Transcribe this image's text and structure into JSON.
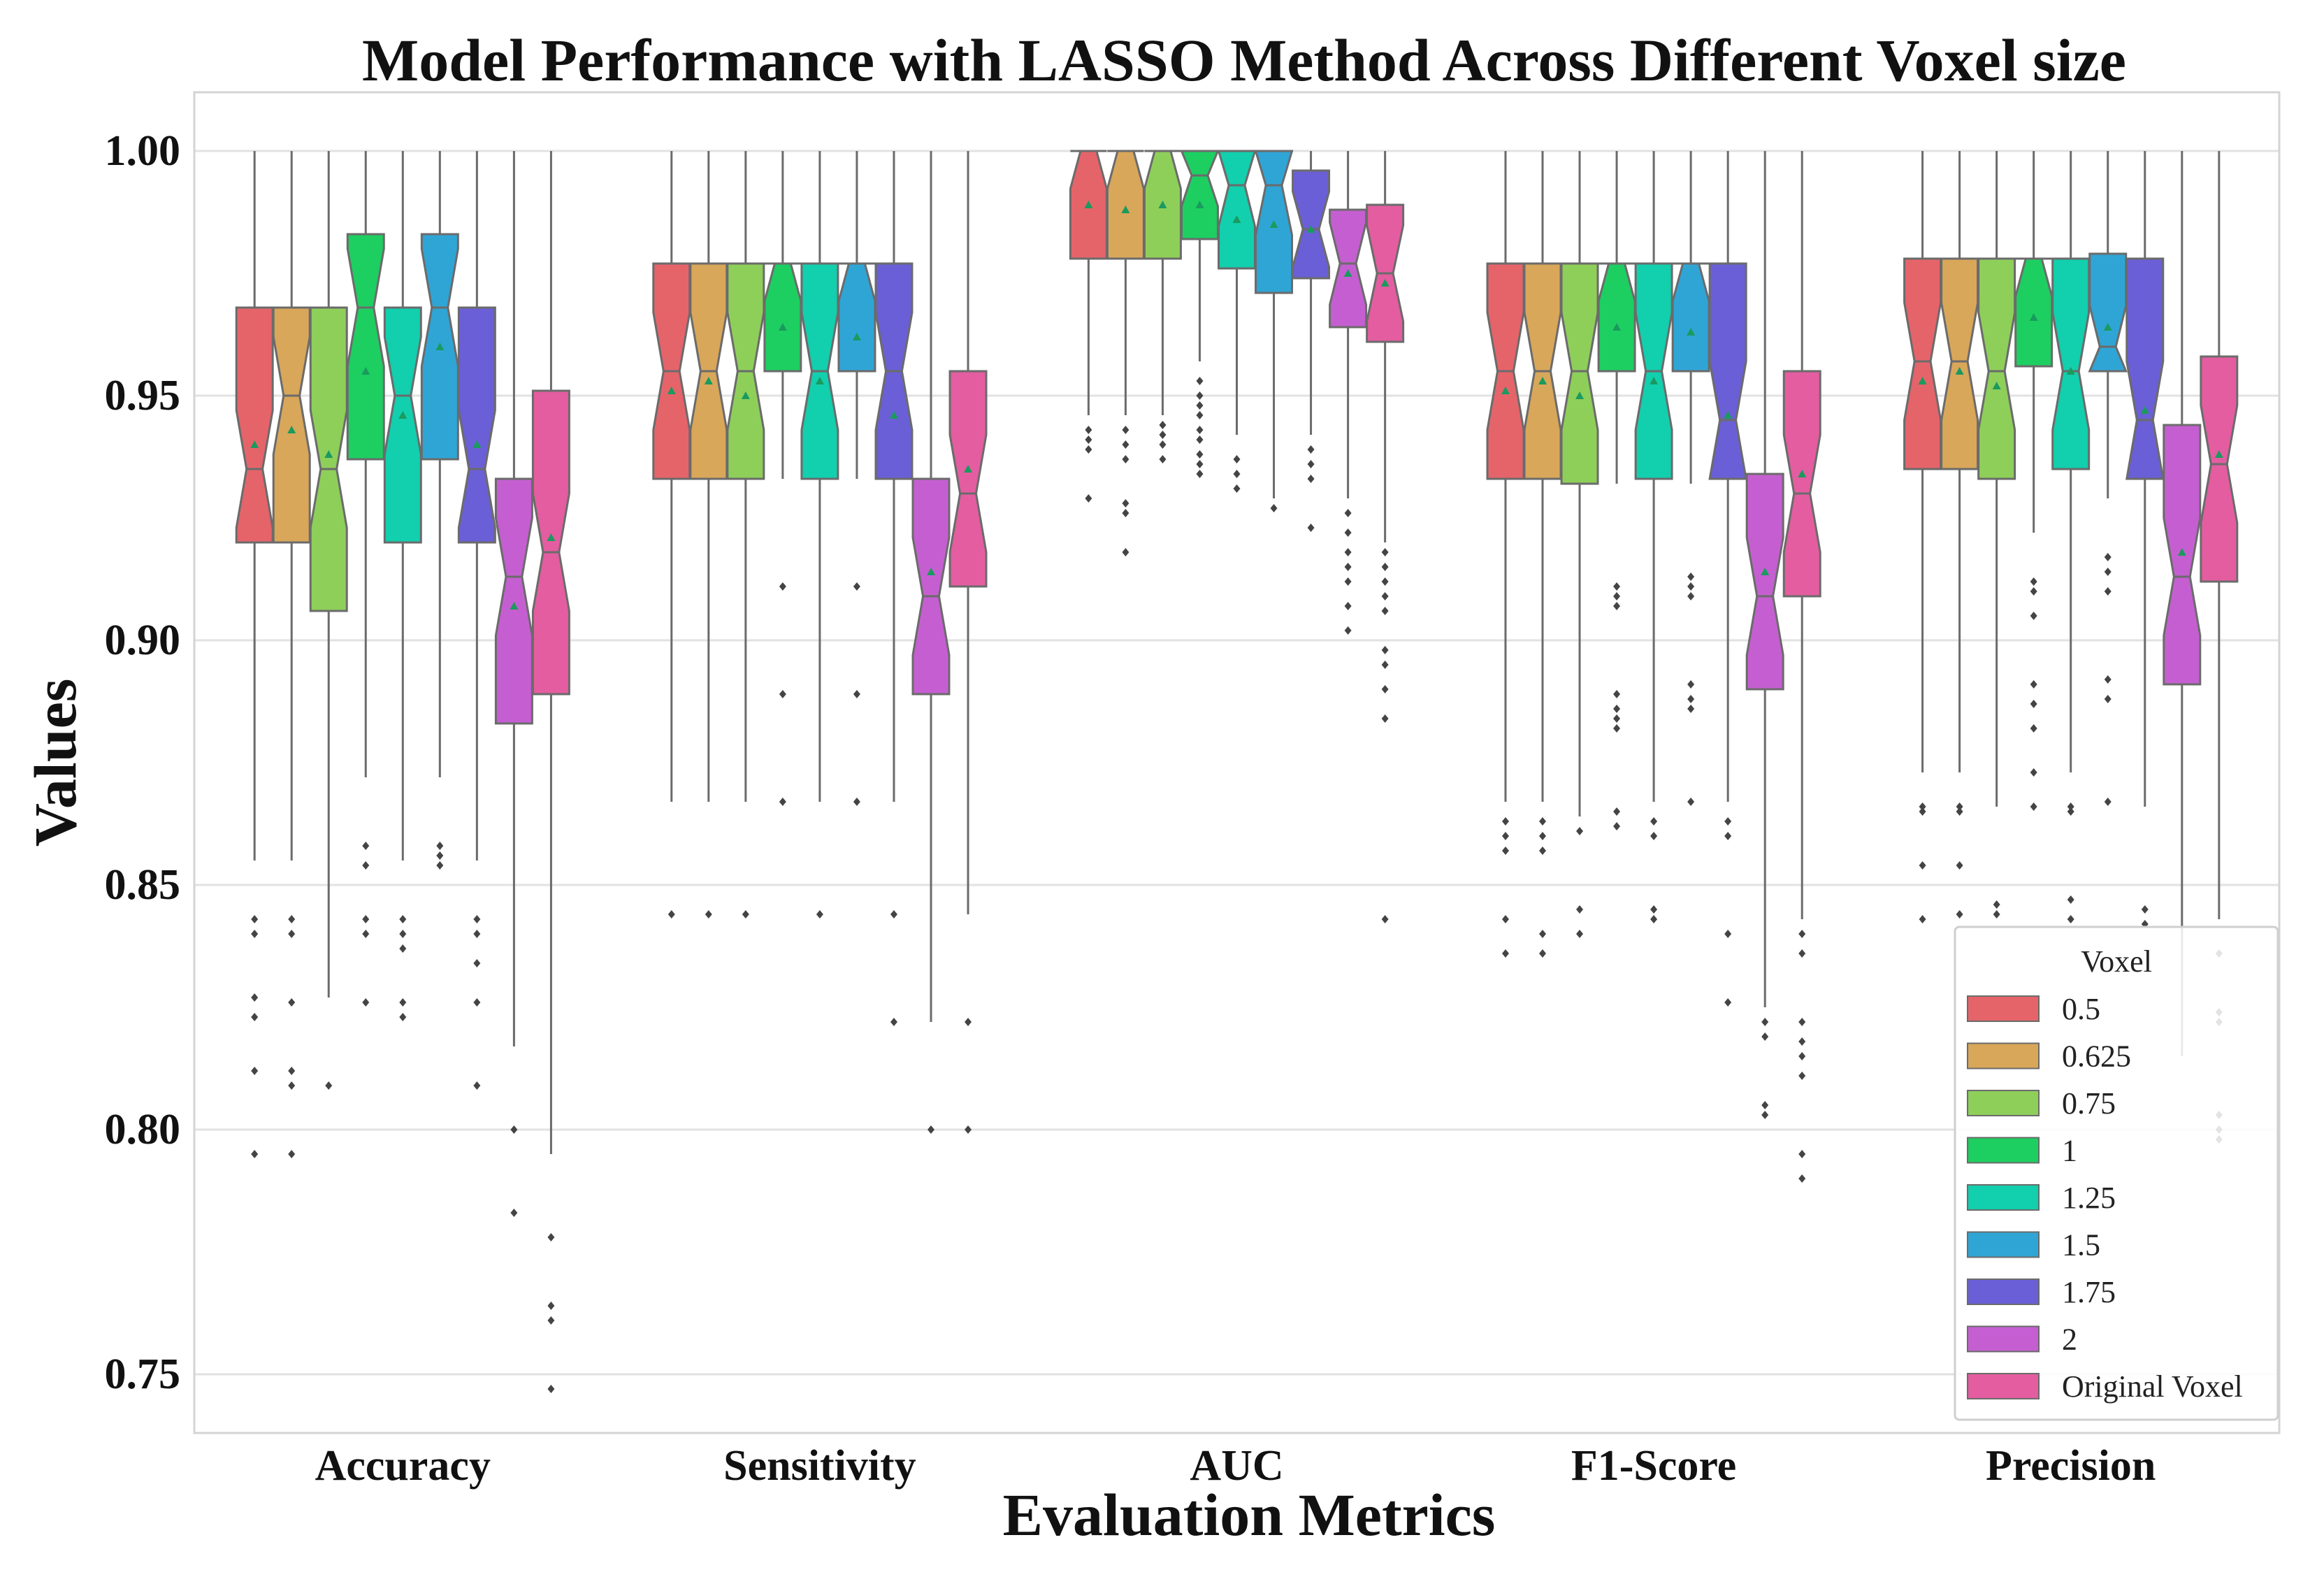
{
  "chart_data": {
    "type": "box",
    "title": "Model Performance with LASSO Method Across Different Voxel size",
    "xlabel": "Evaluation Metrics",
    "ylabel": "Values",
    "ylim": [
      0.738,
      1.012
    ],
    "yticks": [
      0.75,
      0.8,
      0.85,
      0.9,
      0.95,
      1.0
    ],
    "ytick_labels": [
      "0.75",
      "0.80",
      "0.85",
      "0.90",
      "0.95",
      "1.00"
    ],
    "grid": true,
    "notched": true,
    "show_means": true,
    "mean_marker_color": "#1a9a5e",
    "categories": [
      "Accuracy",
      "Sensitivity",
      "AUC",
      "F1-Score",
      "Precision"
    ],
    "legend": {
      "title": "Voxel",
      "position": "lower-right",
      "entries": [
        "0.5",
        "0.625",
        "0.75",
        "1",
        "1.25",
        "1.5",
        "1.75",
        "2",
        "Original Voxel"
      ]
    },
    "series": [
      {
        "name": "0.5",
        "color": "#e5646a",
        "values": [
          {
            "whislo": 0.855,
            "q1": 0.92,
            "med": 0.935,
            "q3": 0.968,
            "whishi": 1.0,
            "mean": 0.94,
            "fliers": [
              0.843,
              0.84,
              0.827,
              0.823,
              0.812,
              0.795
            ]
          },
          {
            "whislo": 0.867,
            "q1": 0.933,
            "med": 0.955,
            "q3": 0.977,
            "whishi": 1.0,
            "mean": 0.951,
            "fliers": [
              0.844
            ]
          },
          {
            "whislo": 0.946,
            "q1": 0.978,
            "med": 1.0,
            "q3": 1.0,
            "whishi": 1.0,
            "mean": 0.989,
            "fliers": [
              0.943,
              0.941,
              0.939,
              0.929
            ]
          },
          {
            "whislo": 0.867,
            "q1": 0.933,
            "med": 0.955,
            "q3": 0.977,
            "whishi": 1.0,
            "mean": 0.951,
            "fliers": [
              0.863,
              0.86,
              0.857,
              0.843,
              0.836
            ]
          },
          {
            "whislo": 0.873,
            "q1": 0.935,
            "med": 0.957,
            "q3": 0.978,
            "whishi": 1.0,
            "mean": 0.953,
            "fliers": [
              0.866,
              0.865,
              0.854,
              0.843
            ]
          }
        ]
      },
      {
        "name": "0.625",
        "color": "#d9a75a",
        "values": [
          {
            "whislo": 0.855,
            "q1": 0.92,
            "med": 0.95,
            "q3": 0.968,
            "whishi": 1.0,
            "mean": 0.943,
            "fliers": [
              0.843,
              0.84,
              0.826,
              0.812,
              0.809,
              0.795
            ]
          },
          {
            "whislo": 0.867,
            "q1": 0.933,
            "med": 0.955,
            "q3": 0.977,
            "whishi": 1.0,
            "mean": 0.953,
            "fliers": [
              0.844
            ]
          },
          {
            "whislo": 0.946,
            "q1": 0.978,
            "med": 1.0,
            "q3": 1.0,
            "whishi": 1.0,
            "mean": 0.988,
            "fliers": [
              0.943,
              0.94,
              0.937,
              0.928,
              0.926,
              0.918
            ]
          },
          {
            "whislo": 0.867,
            "q1": 0.933,
            "med": 0.955,
            "q3": 0.977,
            "whishi": 1.0,
            "mean": 0.953,
            "fliers": [
              0.863,
              0.86,
              0.857,
              0.84,
              0.836
            ]
          },
          {
            "whislo": 0.873,
            "q1": 0.935,
            "med": 0.957,
            "q3": 0.978,
            "whishi": 1.0,
            "mean": 0.955,
            "fliers": [
              0.866,
              0.865,
              0.854,
              0.844
            ]
          }
        ]
      },
      {
        "name": "0.75",
        "color": "#8ecf5a",
        "values": [
          {
            "whislo": 0.827,
            "q1": 0.906,
            "med": 0.935,
            "q3": 0.968,
            "whishi": 1.0,
            "mean": 0.938,
            "fliers": [
              0.809
            ]
          },
          {
            "whislo": 0.867,
            "q1": 0.933,
            "med": 0.955,
            "q3": 0.977,
            "whishi": 1.0,
            "mean": 0.95,
            "fliers": [
              0.844
            ]
          },
          {
            "whislo": 0.946,
            "q1": 0.978,
            "med": 1.0,
            "q3": 1.0,
            "whishi": 1.0,
            "mean": 0.989,
            "fliers": [
              0.944,
              0.942,
              0.94,
              0.937
            ]
          },
          {
            "whislo": 0.864,
            "q1": 0.932,
            "med": 0.955,
            "q3": 0.977,
            "whishi": 1.0,
            "mean": 0.95,
            "fliers": [
              0.861,
              0.845,
              0.84
            ]
          },
          {
            "whislo": 0.866,
            "q1": 0.933,
            "med": 0.955,
            "q3": 0.978,
            "whishi": 1.0,
            "mean": 0.952,
            "fliers": [
              0.846,
              0.844
            ]
          }
        ]
      },
      {
        "name": "1",
        "color": "#1dcf61",
        "values": [
          {
            "whislo": 0.872,
            "q1": 0.937,
            "med": 0.968,
            "q3": 0.983,
            "whishi": 1.0,
            "mean": 0.955,
            "fliers": [
              0.858,
              0.854,
              0.843,
              0.84,
              0.826
            ]
          },
          {
            "whislo": 0.933,
            "q1": 0.955,
            "med": 0.977,
            "q3": 0.977,
            "whishi": 1.0,
            "mean": 0.964,
            "fliers": [
              0.911,
              0.889,
              0.867
            ]
          },
          {
            "whislo": 0.957,
            "q1": 0.982,
            "med": 0.995,
            "q3": 1.0,
            "whishi": 1.0,
            "mean": 0.989,
            "fliers": [
              0.953,
              0.95,
              0.948,
              0.946,
              0.943,
              0.941,
              0.938,
              0.936,
              0.934
            ]
          },
          {
            "whislo": 0.932,
            "q1": 0.955,
            "med": 0.977,
            "q3": 0.977,
            "whishi": 1.0,
            "mean": 0.964,
            "fliers": [
              0.911,
              0.909,
              0.907,
              0.889,
              0.886,
              0.884,
              0.882,
              0.865,
              0.862
            ]
          },
          {
            "whislo": 0.922,
            "q1": 0.956,
            "med": 0.978,
            "q3": 0.978,
            "whishi": 1.0,
            "mean": 0.966,
            "fliers": [
              0.912,
              0.91,
              0.905,
              0.891,
              0.887,
              0.882,
              0.873,
              0.866
            ]
          }
        ]
      },
      {
        "name": "1.25",
        "color": "#12cfae",
        "values": [
          {
            "whislo": 0.855,
            "q1": 0.92,
            "med": 0.95,
            "q3": 0.968,
            "whishi": 1.0,
            "mean": 0.946,
            "fliers": [
              0.843,
              0.84,
              0.837,
              0.826,
              0.823
            ]
          },
          {
            "whislo": 0.867,
            "q1": 0.933,
            "med": 0.955,
            "q3": 0.977,
            "whishi": 1.0,
            "mean": 0.953,
            "fliers": [
              0.844
            ]
          },
          {
            "whislo": 0.942,
            "q1": 0.976,
            "med": 0.993,
            "q3": 1.0,
            "whishi": 1.0,
            "mean": 0.986,
            "fliers": [
              0.937,
              0.934,
              0.931
            ]
          },
          {
            "whislo": 0.867,
            "q1": 0.933,
            "med": 0.955,
            "q3": 0.977,
            "whishi": 1.0,
            "mean": 0.953,
            "fliers": [
              0.863,
              0.86,
              0.845,
              0.843
            ]
          },
          {
            "whislo": 0.873,
            "q1": 0.935,
            "med": 0.955,
            "q3": 0.978,
            "whishi": 1.0,
            "mean": 0.955,
            "fliers": [
              0.866,
              0.865,
              0.847,
              0.843
            ]
          }
        ]
      },
      {
        "name": "1.5",
        "color": "#2fa5d6",
        "values": [
          {
            "whislo": 0.872,
            "q1": 0.937,
            "med": 0.968,
            "q3": 0.983,
            "whishi": 1.0,
            "mean": 0.96,
            "fliers": [
              0.858,
              0.856,
              0.854
            ]
          },
          {
            "whislo": 0.933,
            "q1": 0.955,
            "med": 0.977,
            "q3": 0.977,
            "whishi": 1.0,
            "mean": 0.962,
            "fliers": [
              0.911,
              0.889,
              0.867
            ]
          },
          {
            "whislo": 0.929,
            "q1": 0.971,
            "med": 0.993,
            "q3": 1.0,
            "whishi": 1.0,
            "mean": 0.985,
            "fliers": [
              0.927
            ]
          },
          {
            "whislo": 0.932,
            "q1": 0.955,
            "med": 0.977,
            "q3": 0.977,
            "whishi": 1.0,
            "mean": 0.963,
            "fliers": [
              0.913,
              0.911,
              0.909,
              0.891,
              0.888,
              0.886,
              0.867
            ]
          },
          {
            "whislo": 0.929,
            "q1": 0.955,
            "med": 0.96,
            "q3": 0.979,
            "whishi": 1.0,
            "mean": 0.964,
            "fliers": [
              0.917,
              0.914,
              0.91,
              0.892,
              0.888,
              0.867
            ]
          }
        ]
      },
      {
        "name": "1.75",
        "color": "#6a5fd6",
        "values": [
          {
            "whislo": 0.855,
            "q1": 0.92,
            "med": 0.935,
            "q3": 0.968,
            "whishi": 1.0,
            "mean": 0.94,
            "fliers": [
              0.843,
              0.84,
              0.834,
              0.826,
              0.809
            ]
          },
          {
            "whislo": 0.867,
            "q1": 0.933,
            "med": 0.955,
            "q3": 0.977,
            "whishi": 1.0,
            "mean": 0.946,
            "fliers": [
              0.844,
              0.822
            ]
          },
          {
            "whislo": 0.942,
            "q1": 0.974,
            "med": 0.984,
            "q3": 0.996,
            "whishi": 1.0,
            "mean": 0.984,
            "fliers": [
              0.939,
              0.936,
              0.933,
              0.923
            ]
          },
          {
            "whislo": 0.867,
            "q1": 0.933,
            "med": 0.945,
            "q3": 0.977,
            "whishi": 1.0,
            "mean": 0.946,
            "fliers": [
              0.863,
              0.86,
              0.84,
              0.826
            ]
          },
          {
            "whislo": 0.866,
            "q1": 0.933,
            "med": 0.945,
            "q3": 0.978,
            "whishi": 1.0,
            "mean": 0.947,
            "fliers": [
              0.845,
              0.842
            ]
          }
        ]
      },
      {
        "name": "2",
        "color": "#c55fd1",
        "values": [
          {
            "whislo": 0.817,
            "q1": 0.883,
            "med": 0.913,
            "q3": 0.933,
            "whishi": 1.0,
            "mean": 0.907,
            "fliers": [
              0.8,
              0.783
            ]
          },
          {
            "whislo": 0.822,
            "q1": 0.889,
            "med": 0.909,
            "q3": 0.933,
            "whishi": 1.0,
            "mean": 0.914,
            "fliers": [
              0.8
            ]
          },
          {
            "whislo": 0.929,
            "q1": 0.964,
            "med": 0.977,
            "q3": 0.988,
            "whishi": 1.0,
            "mean": 0.975,
            "fliers": [
              0.926,
              0.922,
              0.918,
              0.915,
              0.912,
              0.907,
              0.902
            ]
          },
          {
            "whislo": 0.825,
            "q1": 0.89,
            "med": 0.909,
            "q3": 0.934,
            "whishi": 1.0,
            "mean": 0.914,
            "fliers": [
              0.822,
              0.819,
              0.805,
              0.803
            ]
          },
          {
            "whislo": 0.815,
            "q1": 0.891,
            "med": 0.913,
            "q3": 0.944,
            "whishi": 1.0,
            "mean": 0.918,
            "fliers": []
          }
        ]
      },
      {
        "name": "Original Voxel",
        "color": "#e45da0",
        "values": [
          {
            "whislo": 0.795,
            "q1": 0.889,
            "med": 0.918,
            "q3": 0.951,
            "whishi": 1.0,
            "mean": 0.921,
            "fliers": [
              0.778,
              0.764,
              0.761,
              0.747
            ]
          },
          {
            "whislo": 0.844,
            "q1": 0.911,
            "med": 0.93,
            "q3": 0.955,
            "whishi": 1.0,
            "mean": 0.935,
            "fliers": [
              0.822,
              0.8
            ]
          },
          {
            "whislo": 0.92,
            "q1": 0.961,
            "med": 0.975,
            "q3": 0.989,
            "whishi": 1.0,
            "mean": 0.973,
            "fliers": [
              0.918,
              0.915,
              0.912,
              0.909,
              0.906,
              0.898,
              0.895,
              0.89,
              0.884,
              0.843
            ]
          },
          {
            "whislo": 0.843,
            "q1": 0.909,
            "med": 0.93,
            "q3": 0.955,
            "whishi": 1.0,
            "mean": 0.934,
            "fliers": [
              0.84,
              0.836,
              0.822,
              0.818,
              0.815,
              0.811,
              0.795,
              0.79
            ]
          },
          {
            "whislo": 0.843,
            "q1": 0.912,
            "med": 0.936,
            "q3": 0.958,
            "whishi": 1.0,
            "mean": 0.938,
            "fliers": [
              0.836,
              0.824,
              0.822,
              0.803,
              0.8,
              0.798
            ]
          }
        ]
      }
    ]
  }
}
